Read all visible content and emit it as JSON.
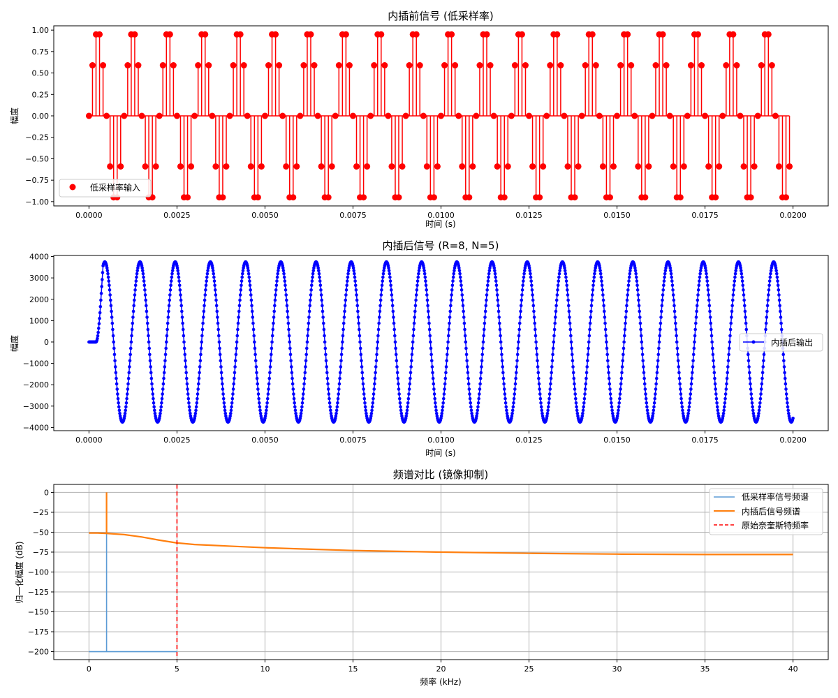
{
  "chart_data": [
    {
      "type": "stem",
      "title": "内插前信号 (低采样率)",
      "xlabel": "时间 (s)",
      "ylabel": "幅度",
      "xlim": [
        -0.001,
        0.021
      ],
      "ylim": [
        -1.05,
        1.05
      ],
      "xticks": [
        "0.0000",
        "0.0025",
        "0.0050",
        "0.0075",
        "0.0100",
        "0.0125",
        "0.0150",
        "0.0175",
        "0.0200"
      ],
      "xtick_values": [
        0,
        0.0025,
        0.005,
        0.0075,
        0.01,
        0.0125,
        0.015,
        0.0175,
        0.02
      ],
      "yticks": [
        "1.00",
        "0.75",
        "0.50",
        "0.25",
        "0.00",
        "−0.25",
        "−0.50",
        "−0.75",
        "−1.00"
      ],
      "ytick_values": [
        1,
        0.75,
        0.5,
        0.25,
        0,
        -0.25,
        -0.5,
        -0.75,
        -1
      ],
      "legend_position": "lower-left",
      "series": [
        {
          "name": "低采样率输入",
          "color": "#ff0000",
          "signal": "sin(2*pi*1000*t)",
          "sample_rate_hz": 10000,
          "t_start": 0,
          "t_end": 0.0199,
          "sample_values_one_period": [
            0.0,
            0.59,
            0.95,
            0.95,
            0.59,
            0.0,
            -0.59,
            -0.95,
            -0.95,
            -0.59
          ]
        }
      ],
      "grid": false
    },
    {
      "type": "line",
      "title": "内插后信号 (R=8, N=5)",
      "xlabel": "时间 (s)",
      "ylabel": "幅度",
      "xlim": [
        -0.001,
        0.021
      ],
      "ylim": [
        -4150,
        4050
      ],
      "xticks": [
        "0.0000",
        "0.0025",
        "0.0050",
        "0.0075",
        "0.0100",
        "0.0125",
        "0.0150",
        "0.0175",
        "0.0200"
      ],
      "xtick_values": [
        0,
        0.0025,
        0.005,
        0.0075,
        0.01,
        0.0125,
        0.015,
        0.0175,
        0.02
      ],
      "yticks": [
        "4000",
        "3000",
        "2000",
        "1000",
        "0",
        "−1000",
        "−2000",
        "−3000",
        "−4000"
      ],
      "ytick_values": [
        4000,
        3000,
        2000,
        1000,
        0,
        -1000,
        -2000,
        -3000,
        -4000
      ],
      "legend_position": "center-right",
      "series": [
        {
          "name": "内插后输出",
          "color": "#0000ff",
          "marker": "dot",
          "signal": "amplitude*sin(2*pi*1000*(t-delay)) after startup transient",
          "amplitude": 3750,
          "sample_rate_hz": 80000,
          "t_start": 0,
          "t_end": 0.02,
          "startup_delay_s": 0.0002
        }
      ],
      "grid": false
    },
    {
      "type": "line",
      "title": "频谱对比 (镜像抑制)",
      "xlabel": "频率 (kHz)",
      "ylabel": "归一化幅度 (dB)",
      "xlim": [
        -2,
        42
      ],
      "ylim": [
        -210,
        10
      ],
      "xticks": [
        "0",
        "5",
        "10",
        "15",
        "20",
        "25",
        "30",
        "35",
        "40"
      ],
      "xtick_values": [
        0,
        5,
        10,
        15,
        20,
        25,
        30,
        35,
        40
      ],
      "yticks": [
        "0",
        "−25",
        "−50",
        "−75",
        "−100",
        "−125",
        "−150",
        "−175",
        "−200"
      ],
      "ytick_values": [
        0,
        -25,
        -50,
        -75,
        -100,
        -125,
        -150,
        -175,
        -200
      ],
      "legend_position": "top-right",
      "grid": true,
      "series": [
        {
          "name": "低采样率信号频谱",
          "color": "#5b9bd5",
          "x": [
            0,
            1,
            1,
            1,
            1,
            5
          ],
          "y": [
            -200,
            -200,
            0,
            -200,
            -200,
            -200
          ]
        },
        {
          "name": "内插后信号频谱",
          "color": "#ff7f0e",
          "x": [
            0,
            0.5,
            1,
            1,
            1,
            2,
            3,
            4,
            5,
            6,
            7,
            8,
            9,
            10,
            12,
            15,
            20,
            25,
            30,
            35,
            40
          ],
          "y": [
            -51,
            -51,
            -51.5,
            0,
            -51.5,
            -53,
            -56,
            -60,
            -63.5,
            -65.5,
            -66.5,
            -67.5,
            -68.5,
            -69.5,
            -71,
            -73,
            -75,
            -76.5,
            -77.5,
            -78,
            -78
          ]
        },
        {
          "name": "原始奈奎斯特频率",
          "color": "#ff0000",
          "dashed": true,
          "vline_x": 5
        }
      ]
    }
  ]
}
